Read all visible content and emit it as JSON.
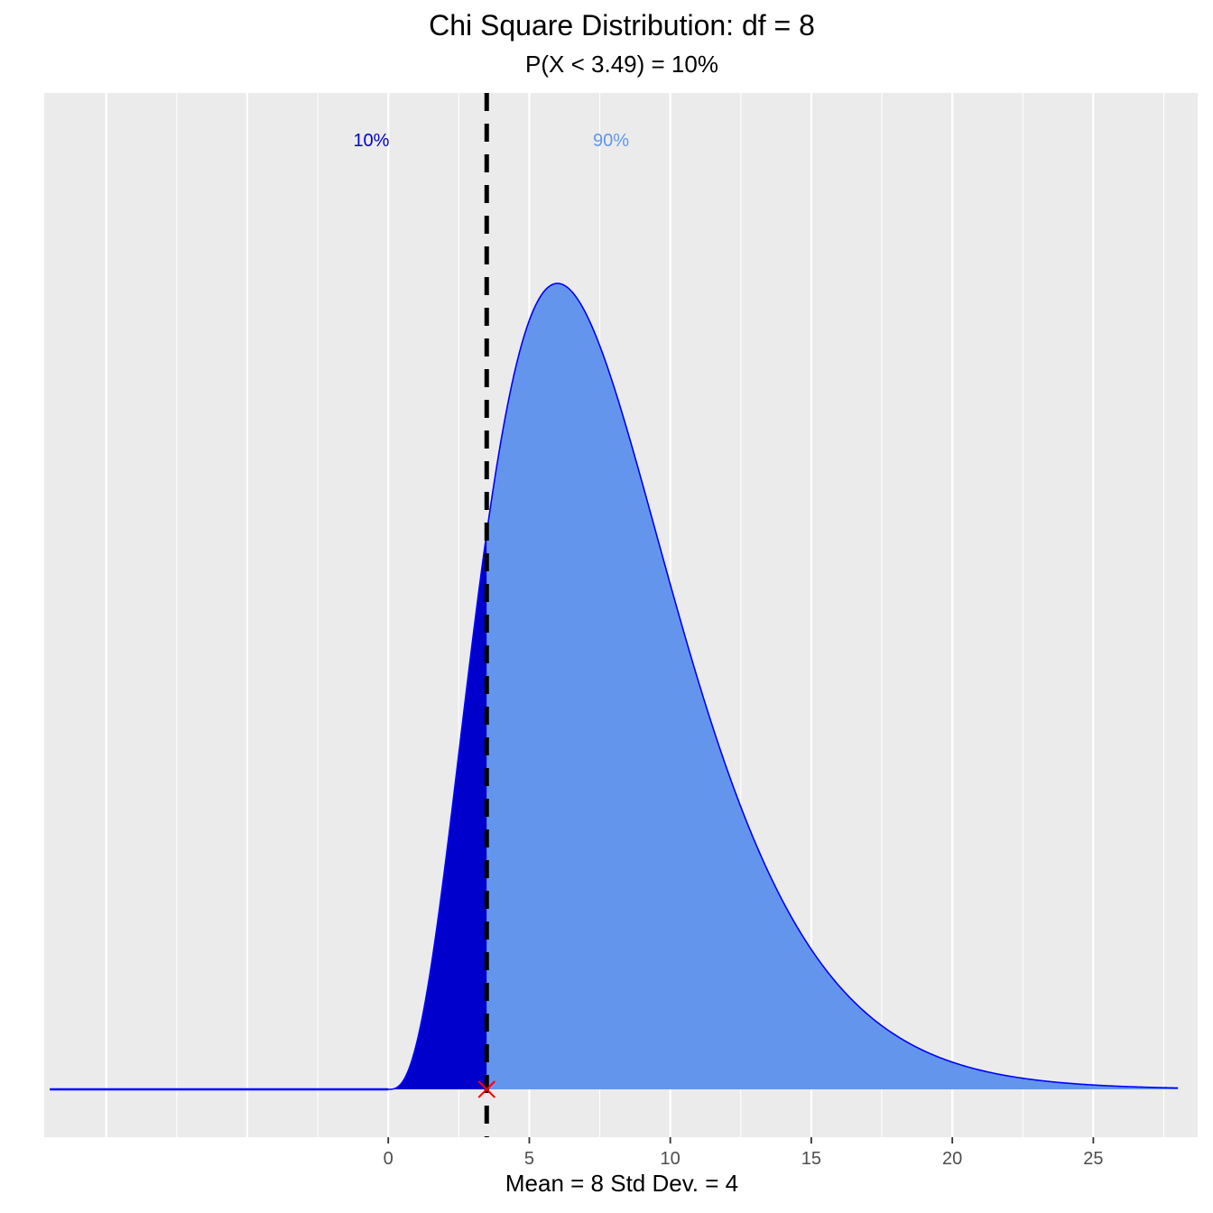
{
  "chart_data": {
    "type": "area",
    "title": "Chi Square Distribution: df = 8",
    "subtitle": "P(X < 3.49) = 10%",
    "xlabel": "Mean = 8  Std Dev. = 4",
    "ylabel": "",
    "df": 8,
    "critical_value": 3.49,
    "xlim": [
      -12.2,
      28.7
    ],
    "x_range_drawn": [
      -12,
      28
    ],
    "xticks": [
      0,
      5,
      10,
      15,
      20,
      25
    ],
    "grid": true,
    "regions": [
      {
        "label": "10%",
        "x_from": 0,
        "x_to": 3.49,
        "color": "#0000CD"
      },
      {
        "label": "90%",
        "x_from": 3.49,
        "x_to": 28,
        "color": "#6495ED"
      }
    ],
    "curve_color": "#0000FF",
    "marker_color": "#FF0000",
    "vline_color": "#000000",
    "panel_color": "#EBEBEB"
  }
}
